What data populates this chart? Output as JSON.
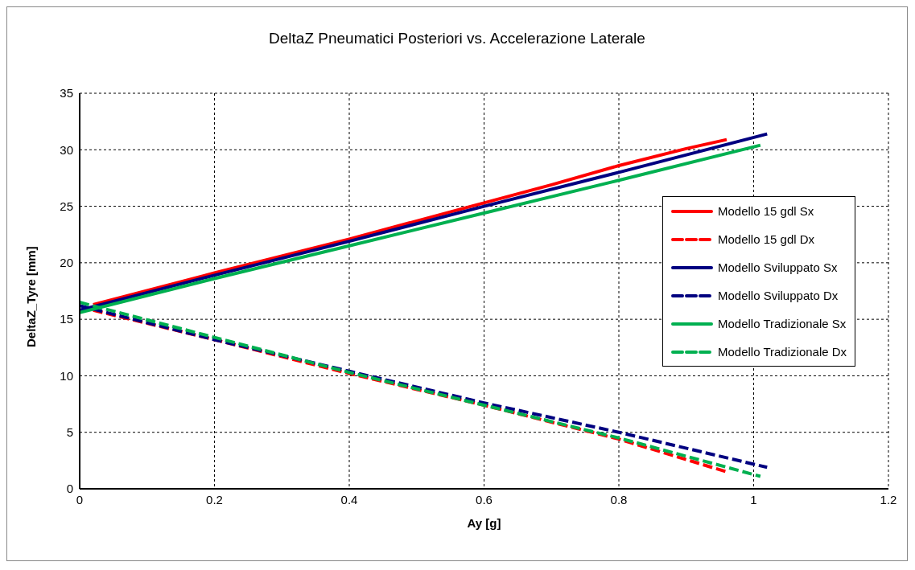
{
  "chart_data": {
    "type": "line",
    "title": "DeltaZ Pneumatici Posteriori vs. Accelerazione Laterale",
    "xlabel": "Ay [g]",
    "ylabel": "DeltaZ_Tyre [mm]",
    "xlim": [
      0,
      1.2
    ],
    "xticks": [
      0,
      0.2,
      0.4,
      0.6,
      0.8,
      1,
      1.2
    ],
    "ylim": [
      0,
      35
    ],
    "yticks": [
      0,
      5,
      10,
      15,
      20,
      25,
      30,
      35
    ],
    "grid": true,
    "legend": "right",
    "marker": "none",
    "series": [
      {
        "name": "Modello 15 gdl Sx",
        "color": "#ff0000",
        "line_style": "solid",
        "x": [
          0.02,
          0.2,
          0.4,
          0.6,
          0.7,
          0.8,
          0.9,
          0.96
        ],
        "values": [
          16.3,
          19.1,
          22.1,
          25.3,
          26.9,
          28.6,
          30.1,
          30.9
        ]
      },
      {
        "name": "Modello 15 gdl Dx",
        "color": "#ff0000",
        "line_style": "dashed",
        "x": [
          0.02,
          0.2,
          0.4,
          0.6,
          0.8,
          0.96
        ],
        "values": [
          15.8,
          13.2,
          10.2,
          7.4,
          4.4,
          1.5
        ]
      },
      {
        "name": "Modello Sviluppato Sx",
        "color": "#000080",
        "line_style": "solid",
        "x": [
          0,
          0.2,
          0.4,
          0.6,
          0.8,
          1.02
        ],
        "values": [
          15.8,
          18.9,
          21.9,
          25.0,
          28.0,
          31.4
        ]
      },
      {
        "name": "Modello Sviluppato Dx",
        "color": "#000080",
        "line_style": "dashed",
        "x": [
          0,
          0.2,
          0.4,
          0.6,
          0.8,
          1.02
        ],
        "values": [
          16.2,
          13.2,
          10.4,
          7.6,
          5.0,
          1.9
        ]
      },
      {
        "name": "Modello Tradizionale  Sx",
        "color": "#00b050",
        "line_style": "solid",
        "x": [
          0,
          0.2,
          0.4,
          0.6,
          0.8,
          1.01
        ],
        "values": [
          15.6,
          18.6,
          21.5,
          24.4,
          27.3,
          30.4
        ]
      },
      {
        "name": "Modello Tradizionale  Dx",
        "color": "#00b050",
        "line_style": "dashed",
        "x": [
          0,
          0.2,
          0.4,
          0.6,
          0.8,
          1.01
        ],
        "values": [
          16.5,
          13.4,
          10.3,
          7.4,
          4.5,
          1.1
        ]
      }
    ]
  }
}
